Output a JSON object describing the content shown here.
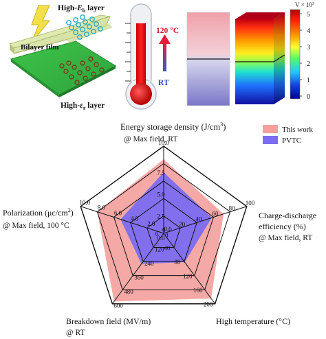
{
  "bilayer": {
    "top_label_prefix": "High-",
    "top_label_symbol": "E",
    "top_label_sub": "b",
    "top_label_suffix": " layer",
    "film_label": "Bilayer film",
    "bottom_label_prefix": "High-",
    "bottom_label_symbol": "ε",
    "bottom_label_sub": "r",
    "bottom_label_suffix": " layer"
  },
  "thermometer": {
    "high_label": "120 °C",
    "low_label": "RT"
  },
  "colorbar": {
    "title": "V × 10",
    "title_exp": "3",
    "ticks": [
      "5",
      "4",
      "3",
      "2",
      "1",
      "0"
    ]
  },
  "legend": {
    "items": [
      {
        "label": "This work",
        "color": "#f4a09c"
      },
      {
        "label": "PVTC",
        "color": "#7b6cf0"
      }
    ]
  },
  "axes": {
    "energy": {
      "title_line1": "Energy storage density  (J/cm",
      "title_sup": "3",
      "title_end": ")",
      "title_line2": "@ Max field, RT"
    },
    "efficiency": {
      "title_line1": "Charge-discharge",
      "title_line2": "efficiency (%)",
      "title_line3": "@ Max field, RT"
    },
    "temperature": {
      "title_line1": "High temperature (°C)"
    },
    "breakdown": {
      "title_line1": "Breakdown field (MV/m)",
      "title_line2": "@ RT"
    },
    "polarization": {
      "title_line1": "Polarization (μc/cm",
      "title_sup": "2",
      "title_end": ")",
      "title_line2": "@ Max field, 100 °C"
    }
  },
  "chart_data": {
    "type": "radar",
    "axes": [
      {
        "key": "energy",
        "ticks": [
          "0.0",
          "2.5",
          "5.0",
          "7.5",
          "10.0"
        ],
        "max": 10
      },
      {
        "key": "efficiency",
        "ticks": [
          "0",
          "20",
          "40",
          "60",
          "80",
          "100"
        ],
        "max": 100
      },
      {
        "key": "temperature",
        "ticks": [
          "0",
          "40",
          "80",
          "120",
          "160",
          "200"
        ],
        "max": 200
      },
      {
        "key": "breakdown",
        "ticks": [
          "0",
          "120",
          "240",
          "360",
          "480",
          "600"
        ],
        "max": 600
      },
      {
        "key": "polarization",
        "ticks": [
          "0.0",
          "2.0",
          "4.0",
          "6.0",
          "8.0",
          "10.0"
        ],
        "max": 10
      }
    ],
    "series": [
      {
        "name": "This work",
        "color": "#f4a09c",
        "values": [
          8.5,
          72,
          185,
          580,
          8.0
        ]
      },
      {
        "name": "PVTC",
        "color": "#7b6cf0",
        "values": [
          7.0,
          58,
          82,
          260,
          5.2
        ]
      }
    ]
  }
}
